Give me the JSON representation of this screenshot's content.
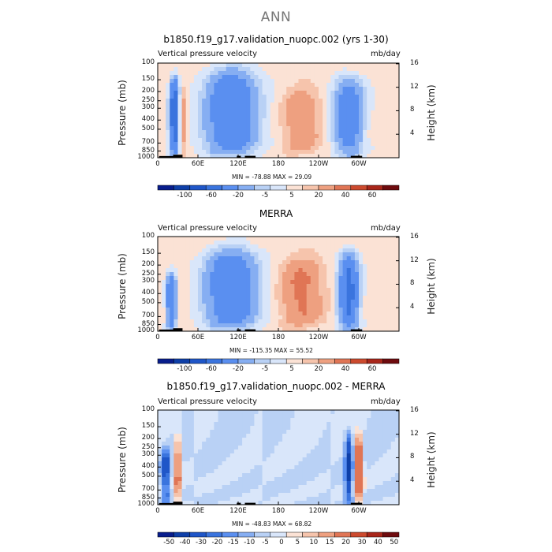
{
  "figure": {
    "suptitle": "ANN"
  },
  "colors": {
    "seq13": [
      "#081d8c",
      "#0e3fa8",
      "#1f56c8",
      "#3a74de",
      "#5a8ff0",
      "#86aef2",
      "#b9d1f5",
      "#d9e6fa",
      "#fbe2d5",
      "#f6c4ac",
      "#eea080",
      "#e07555",
      "#cc4a2e",
      "#a8261a",
      "#6e0b0e"
    ],
    "diff15": [
      "#081d8c",
      "#0e3fa8",
      "#1f56c8",
      "#3a74de",
      "#5a8ff0",
      "#86aef2",
      "#b9d1f5",
      "#d9e6fa",
      "#fbe2d5",
      "#f6c4ac",
      "#eea080",
      "#e07555",
      "#cc4a2e",
      "#a8261a",
      "#6e0b0e"
    ]
  },
  "panels": [
    {
      "title": "b1850.f19_g17.validation_nuopc.002 (yrs 1-30)",
      "variable": "Vertical pressure velocity",
      "units": "mb/day",
      "ylabel_left": "Pressure (mb)",
      "ylabel_right": "Height (km)",
      "minmax": "MIN = -78.88   MAX =  29.09",
      "colorbar_labels": [
        "-100",
        "-60",
        "-20",
        "-5",
        "5",
        "20",
        "40",
        "60"
      ]
    },
    {
      "title": "MERRA",
      "variable": "Vertical pressure velocity",
      "units": "mb/day",
      "ylabel_left": "Pressure (mb)",
      "ylabel_right": "Height (km)",
      "minmax": "MIN = -115.35   MAX =  55.52",
      "colorbar_labels": [
        "-100",
        "-60",
        "-20",
        "-5",
        "5",
        "20",
        "40",
        "60"
      ]
    },
    {
      "title": "b1850.f19_g17.validation_nuopc.002 - MERRA",
      "variable": "Vertical pressure velocity",
      "units": "mb/day",
      "ylabel_left": "Pressure (mb)",
      "ylabel_right": "Height (km)",
      "minmax": "MIN = -48.83   MAX =  68.82",
      "colorbar_labels": [
        "-50",
        "-40",
        "-30",
        "-20",
        "-15",
        "-10",
        "-5",
        "0",
        "5",
        "10",
        "15",
        "20",
        "30",
        "40",
        "50"
      ]
    }
  ],
  "chart_data": [
    {
      "type": "heatmap",
      "title": "b1850.f19_g17.validation_nuopc.002 (yrs 1-30)",
      "xticks": [
        "0",
        "60E",
        "120E",
        "180",
        "120W",
        "60W"
      ],
      "yticks_left": [
        "100",
        "150",
        "200",
        "250",
        "300",
        "400",
        "500",
        "700",
        "850",
        "1000"
      ],
      "yticks_right": [
        "16",
        "12",
        "8",
        "4"
      ],
      "xlim_deg": [
        0,
        360
      ],
      "ylim_mb": [
        1000,
        100
      ],
      "log_pressure": true,
      "min": -78.88,
      "max": 29.09,
      "levels": [
        -120,
        -100,
        -80,
        -60,
        -40,
        -20,
        -10,
        -5,
        0,
        5,
        10,
        20,
        30,
        40,
        60,
        80
      ],
      "features": [
        {
          "lon": 25,
          "width": 10,
          "p_top": 150,
          "p_bot": 900,
          "value": -60
        },
        {
          "lon": 36,
          "width": 5,
          "p_top": 180,
          "p_bot": 900,
          "value": 25
        },
        {
          "lon": 110,
          "width": 55,
          "p_top": 120,
          "p_bot": 950,
          "value": -40
        },
        {
          "lon": 215,
          "width": 35,
          "p_top": 200,
          "p_bot": 850,
          "value": 15
        },
        {
          "lon": 285,
          "width": 30,
          "p_top": 140,
          "p_bot": 950,
          "value": -35
        }
      ]
    },
    {
      "type": "heatmap",
      "title": "MERRA",
      "xticks": [
        "0",
        "60E",
        "120E",
        "180",
        "120W",
        "60W"
      ],
      "yticks_left": [
        "100",
        "150",
        "200",
        "250",
        "300",
        "400",
        "500",
        "700",
        "850",
        "1000"
      ],
      "yticks_right": [
        "16",
        "12",
        "8",
        "4"
      ],
      "xlim_deg": [
        0,
        360
      ],
      "ylim_mb": [
        1000,
        100
      ],
      "log_pressure": true,
      "min": -115.35,
      "max": 55.52,
      "levels": [
        -120,
        -100,
        -80,
        -60,
        -40,
        -20,
        -10,
        -5,
        0,
        5,
        10,
        20,
        30,
        40,
        60,
        80
      ],
      "features": [
        {
          "lon": 20,
          "width": 10,
          "p_top": 250,
          "p_bot": 950,
          "value": -40
        },
        {
          "lon": 110,
          "width": 55,
          "p_top": 140,
          "p_bot": 950,
          "value": -40
        },
        {
          "lon": 215,
          "width": 40,
          "p_top": 180,
          "p_bot": 850,
          "value": 20
        },
        {
          "lon": 285,
          "width": 20,
          "p_top": 150,
          "p_bot": 950,
          "value": -50
        }
      ]
    },
    {
      "type": "heatmap",
      "title": "b1850.f19_g17.validation_nuopc.002 - MERRA",
      "xticks": [
        "0",
        "60E",
        "120E",
        "180",
        "120W",
        "60W"
      ],
      "yticks_left": [
        "100",
        "150",
        "200",
        "250",
        "300",
        "400",
        "500",
        "700",
        "850",
        "1000"
      ],
      "yticks_right": [
        "16",
        "12",
        "8",
        "4"
      ],
      "xlim_deg": [
        0,
        360
      ],
      "ylim_mb": [
        1000,
        100
      ],
      "log_pressure": true,
      "min": -48.83,
      "max": 68.82,
      "levels": [
        -50,
        -40,
        -30,
        -20,
        -15,
        -10,
        -5,
        0,
        5,
        10,
        15,
        20,
        30,
        40,
        50
      ],
      "features": [
        {
          "lon": 12,
          "width": 8,
          "p_top": 250,
          "p_bot": 950,
          "value": -25
        },
        {
          "lon": 30,
          "width": 6,
          "p_top": 180,
          "p_bot": 950,
          "value": 30
        },
        {
          "lon": 285,
          "width": 8,
          "p_top": 180,
          "p_bot": 950,
          "value": -30
        },
        {
          "lon": 300,
          "width": 8,
          "p_top": 180,
          "p_bot": 950,
          "value": 35
        }
      ]
    }
  ]
}
